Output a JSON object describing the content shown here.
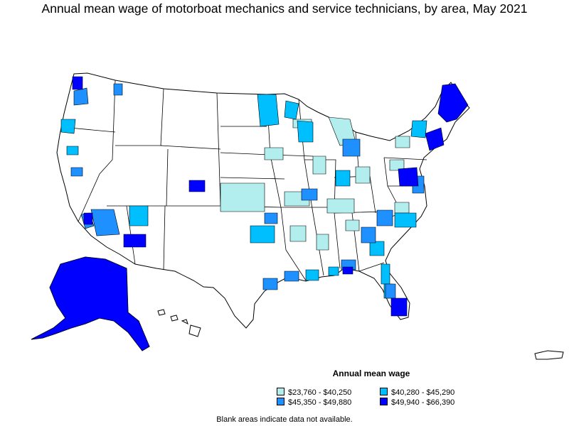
{
  "title": "Annual mean wage of motorboat mechanics and service technicians, by area, May 2021",
  "legend": {
    "title": "Annual mean wage",
    "items": [
      {
        "label": "$23,760 - $40,250",
        "color": "#b2eeee"
      },
      {
        "label": "$40,280 - $45,290",
        "color": "#00bfff"
      },
      {
        "label": "$45,350 - $49,880",
        "color": "#1e90ff"
      },
      {
        "label": "$49,940 - $66,390",
        "color": "#0000ff"
      }
    ]
  },
  "footnote": "Blank areas indicate data not available.",
  "colors": {
    "no_data": "#ffffff",
    "border": "#000000",
    "tier1": "#b2eeee",
    "tier2": "#00bfff",
    "tier3": "#1e90ff",
    "tier4": "#0000ff"
  }
}
